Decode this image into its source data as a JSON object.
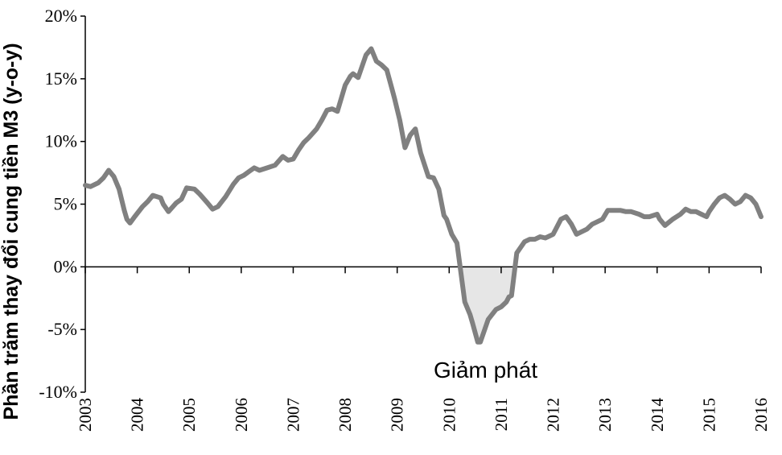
{
  "chart_data": {
    "type": "line",
    "ylabel": "Phần trăm thay đổi cung tiền M3 (y-o-y)",
    "xlabel": "",
    "ylim": [
      -10,
      20
    ],
    "xlim": [
      2003,
      2016
    ],
    "yticks": [
      -10,
      -5,
      0,
      5,
      10,
      15,
      20
    ],
    "ytick_labels": [
      "-10%",
      "-5%",
      "0%",
      "5%",
      "10%",
      "15%",
      "20%"
    ],
    "xticks": [
      2003,
      2004,
      2005,
      2006,
      2007,
      2008,
      2009,
      2010,
      2011,
      2012,
      2013,
      2014,
      2015,
      2016
    ],
    "xtick_labels": [
      "2003",
      "2004",
      "2005",
      "2006",
      "2007",
      "2008",
      "2009",
      "2010",
      "2011",
      "2012",
      "2013",
      "2014",
      "2015",
      "2016"
    ],
    "grid": false,
    "line_color": "#808080",
    "fill_color": "#e6e6e6",
    "annotation": {
      "text": "Giảm phát",
      "x": 2010.7,
      "y": -8.2
    },
    "series": [
      {
        "x": [
          2003.0,
          2003.1,
          2003.25,
          2003.35,
          2003.45,
          2003.55,
          2003.65,
          2003.75,
          2003.8,
          2003.86,
          2003.95,
          2004.1,
          2004.2,
          2004.3,
          2004.45,
          2004.5,
          2004.6,
          2004.75,
          2004.85,
          2004.95,
          2005.1,
          2005.2,
          2005.35,
          2005.45,
          2005.55,
          2005.7,
          2005.85,
          2005.95,
          2006.05,
          2006.15,
          2006.25,
          2006.35,
          2006.5,
          2006.65,
          2006.8,
          2006.9,
          2007.0,
          2007.1,
          2007.2,
          2007.3,
          2007.45,
          2007.55,
          2007.65,
          2007.75,
          2007.85,
          2008.0,
          2008.1,
          2008.15,
          2008.25,
          2008.4,
          2008.5,
          2008.6,
          2008.7,
          2008.8,
          2008.9,
          2008.95,
          2009.05,
          2009.15,
          2009.25,
          2009.35,
          2009.45,
          2009.6,
          2009.7,
          2009.8,
          2009.9,
          2009.95,
          2010.05,
          2010.15,
          2010.3,
          2010.4,
          2010.45,
          2010.55,
          2010.6,
          2010.75,
          2010.9,
          2011.0,
          2011.1,
          2011.15,
          2011.2,
          2011.3,
          2011.45,
          2011.55,
          2011.65,
          2011.75,
          2011.85,
          2011.9,
          2012.0,
          2012.05,
          2012.15,
          2012.25,
          2012.35,
          2012.45,
          2012.55,
          2012.65,
          2012.75,
          2012.85,
          2012.95,
          2013.05,
          2013.15,
          2013.3,
          2013.4,
          2013.5,
          2013.65,
          2013.75,
          2013.85,
          2014.0,
          2014.05,
          2014.15,
          2014.3,
          2014.45,
          2014.55,
          2014.65,
          2014.75,
          2014.85,
          2014.95,
          2015.0,
          2015.1,
          2015.2,
          2015.3,
          2015.4,
          2015.5,
          2015.6,
          2015.7,
          2015.8,
          2015.9,
          2016.0
        ],
        "y": [
          6.5,
          6.4,
          6.7,
          7.1,
          7.7,
          7.2,
          6.2,
          4.5,
          3.8,
          3.5,
          4.0,
          4.8,
          5.2,
          5.7,
          5.5,
          5.0,
          4.4,
          5.1,
          5.4,
          6.3,
          6.2,
          5.8,
          5.1,
          4.6,
          4.8,
          5.6,
          6.6,
          7.1,
          7.3,
          7.6,
          7.9,
          7.7,
          7.9,
          8.1,
          8.8,
          8.5,
          8.6,
          9.3,
          9.9,
          10.3,
          11.0,
          11.7,
          12.5,
          12.6,
          12.4,
          14.5,
          15.2,
          15.4,
          15.1,
          16.9,
          17.4,
          16.4,
          16.1,
          15.7,
          14.2,
          13.4,
          11.7,
          9.5,
          10.5,
          11.0,
          9.1,
          7.2,
          7.1,
          6.2,
          4.1,
          3.8,
          2.6,
          1.9,
          -2.8,
          -3.8,
          -4.5,
          -6.0,
          -6.0,
          -4.2,
          -3.4,
          -3.2,
          -2.8,
          -2.4,
          -2.3,
          1.1,
          2.0,
          2.2,
          2.2,
          2.4,
          2.3,
          2.4,
          2.6,
          3.0,
          3.8,
          4.0,
          3.4,
          2.6,
          2.8,
          3.0,
          3.4,
          3.6,
          3.8,
          4.5,
          4.5,
          4.5,
          4.4,
          4.4,
          4.2,
          4.0,
          4.0,
          4.2,
          3.8,
          3.3,
          3.8,
          4.2,
          4.6,
          4.4,
          4.4,
          4.2,
          4.0,
          4.4,
          5.0,
          5.5,
          5.7,
          5.4,
          5.0,
          5.2,
          5.7,
          5.5,
          5.0,
          4.0
        ]
      }
    ]
  }
}
